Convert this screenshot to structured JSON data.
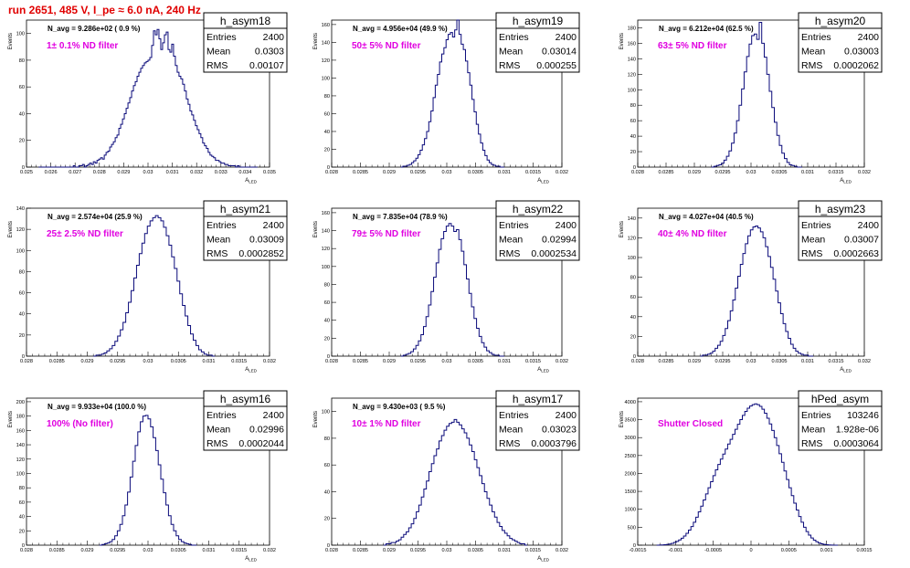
{
  "header": {
    "title": "run 2651,   485 V, I_pe ≈ 6.0 nA, 240 Hz"
  },
  "colors": {
    "histogram": "#0a0a7a",
    "annotation": "#e000e0",
    "title": "#e00000"
  },
  "chart_data": [
    {
      "type": "histogram",
      "name": "h_asym18",
      "n_avg": "N_avg = 9.286e+02 ( 0.9 %)",
      "annotation": "1± 0.1% ND filter",
      "xlabel": "A_LED",
      "ylabel": "Events",
      "xlim": [
        0.025,
        0.035
      ],
      "ylim": [
        0,
        110
      ],
      "xticks": [
        0.025,
        0.026,
        0.027,
        0.028,
        0.029,
        0.03,
        0.031,
        0.032,
        0.033,
        0.034,
        0.035
      ],
      "xtick_labels": [
        "0.025",
        "0.026",
        "0.027",
        "0.028",
        "0.029",
        "0.03",
        "0.031",
        "0.032",
        "0.033",
        "0.034",
        "0.035"
      ],
      "yticks": [
        0,
        20,
        40,
        60,
        80,
        100
      ],
      "ytick_labels": [
        "0",
        "20",
        "40",
        "60",
        "80",
        "100"
      ],
      "bins": {
        "lo": 0.0255,
        "hi": 0.0345,
        "values": [
          0,
          0,
          0,
          0,
          0,
          0,
          0,
          0,
          0,
          0,
          0,
          0,
          0,
          0,
          0,
          0,
          0,
          0,
          0,
          1,
          0,
          0,
          1,
          1,
          2,
          0,
          1,
          2,
          3,
          2,
          4,
          3,
          5,
          6,
          7,
          6,
          9,
          11,
          12,
          15,
          17,
          19,
          22,
          24,
          29,
          32,
          36,
          40,
          44,
          48,
          52,
          57,
          61,
          64,
          68,
          71,
          74,
          76,
          78,
          79,
          80,
          82,
          91,
          102,
          99,
          103,
          96,
          88,
          93,
          99,
          101,
          88,
          86,
          92,
          83,
          76,
          71,
          68,
          66,
          62,
          57,
          51,
          47,
          42,
          39,
          35,
          31,
          28,
          25,
          22,
          18,
          16,
          14,
          11,
          9,
          8,
          7,
          5,
          5,
          4,
          3,
          3,
          2,
          2,
          1,
          1,
          1,
          1,
          0,
          1,
          0,
          0,
          0,
          0,
          0,
          0,
          0,
          0,
          0,
          0
        ]
      },
      "stats": {
        "entries": "2400",
        "mean": "0.0303",
        "rms": "0.00107"
      }
    },
    {
      "type": "histogram",
      "name": "h_asym19",
      "n_avg": "N_avg = 4.956e+04 (49.9 %)",
      "annotation": "50± 5% ND filter",
      "xlabel": "A_LED",
      "ylabel": "Events",
      "xlim": [
        0.028,
        0.032
      ],
      "ylim": [
        0,
        165
      ],
      "xticks": [
        0.028,
        0.0285,
        0.029,
        0.0295,
        0.03,
        0.0305,
        0.031,
        0.0315,
        0.032
      ],
      "xtick_labels": [
        "0.028",
        "0.0285",
        "0.029",
        "0.0295",
        "0.03",
        "0.0305",
        "0.031",
        "0.0315",
        "0.032"
      ],
      "yticks": [
        0,
        20,
        40,
        60,
        80,
        100,
        120,
        140,
        160
      ],
      "ytick_labels": [
        "0",
        "20",
        "40",
        "60",
        "80",
        "100",
        "120",
        "140",
        "160"
      ],
      "bins": {
        "lo": 0.0292,
        "hi": 0.031,
        "values": [
          0,
          1,
          1,
          2,
          3,
          5,
          7,
          10,
          14,
          19,
          25,
          32,
          40,
          51,
          63,
          78,
          92,
          104,
          118,
          127,
          134,
          143,
          149,
          151,
          146,
          154,
          165,
          149,
          138,
          132,
          119,
          106,
          92,
          76,
          62,
          48,
          37,
          27,
          19,
          13,
          8,
          5,
          3,
          2,
          1,
          1,
          0,
          0
        ]
      },
      "stats": {
        "entries": "2400",
        "mean": "0.03014",
        "rms": "0.000255"
      }
    },
    {
      "type": "histogram",
      "name": "h_asym20",
      "n_avg": "N_avg = 6.212e+04 (62.5 %)",
      "annotation": "63± 5% ND filter",
      "xlabel": "A_LED",
      "ylabel": "Events",
      "xlim": [
        0.028,
        0.032
      ],
      "ylim": [
        0,
        190
      ],
      "xticks": [
        0.028,
        0.0285,
        0.029,
        0.0295,
        0.03,
        0.0305,
        0.031,
        0.0315,
        0.032
      ],
      "xtick_labels": [
        "0.028",
        "0.0285",
        "0.029",
        "0.0295",
        "0.03",
        "0.0305",
        "0.031",
        "0.0315",
        "0.032"
      ],
      "yticks": [
        0,
        20,
        40,
        60,
        80,
        100,
        120,
        140,
        160,
        180
      ],
      "ytick_labels": [
        "0",
        "20",
        "40",
        "60",
        "80",
        "100",
        "120",
        "140",
        "160",
        "180"
      ],
      "bins": {
        "lo": 0.0293,
        "hi": 0.0309,
        "values": [
          0,
          1,
          2,
          3,
          5,
          9,
          14,
          21,
          31,
          44,
          60,
          80,
          101,
          123,
          143,
          159,
          170,
          172,
          165,
          187,
          160,
          142,
          120,
          98,
          77,
          58,
          41,
          28,
          18,
          11,
          6,
          3,
          2,
          1,
          0,
          0
        ]
      },
      "stats": {
        "entries": "2400",
        "mean": "0.03003",
        "rms": "0.0002062"
      }
    },
    {
      "type": "histogram",
      "name": "h_asym21",
      "n_avg": "N_avg = 2.574e+04 (25.9 %)",
      "annotation": "25± 2.5% ND filter",
      "xlabel": "A_LED",
      "ylabel": "Events",
      "xlim": [
        0.028,
        0.032
      ],
      "ylim": [
        0,
        140
      ],
      "xticks": [
        0.028,
        0.0285,
        0.029,
        0.0295,
        0.03,
        0.0305,
        0.031,
        0.0315,
        0.032
      ],
      "xtick_labels": [
        "0.028",
        "0.0285",
        "0.029",
        "0.0295",
        "0.03",
        "0.0305",
        "0.031",
        "0.0315",
        "0.032"
      ],
      "yticks": [
        0,
        20,
        40,
        60,
        80,
        100,
        120,
        140
      ],
      "ytick_labels": [
        "0",
        "20",
        "40",
        "60",
        "80",
        "100",
        "120",
        "140"
      ],
      "bins": {
        "lo": 0.0291,
        "hi": 0.0311,
        "values": [
          0,
          1,
          1,
          2,
          3,
          5,
          7,
          10,
          14,
          19,
          25,
          32,
          41,
          51,
          62,
          74,
          86,
          97,
          107,
          116,
          123,
          128,
          131,
          133,
          131,
          128,
          122,
          114,
          105,
          94,
          83,
          71,
          59,
          48,
          38,
          29,
          21,
          15,
          10,
          6,
          4,
          2,
          1,
          1,
          0
        ]
      },
      "stats": {
        "entries": "2400",
        "mean": "0.03009",
        "rms": "0.0002852"
      }
    },
    {
      "type": "histogram",
      "name": "h_asym22",
      "n_avg": "N_avg = 7.835e+04 (78.9 %)",
      "annotation": "79± 5% ND filter",
      "xlabel": "A_LED",
      "ylabel": "Events",
      "xlim": [
        0.028,
        0.032
      ],
      "ylim": [
        0,
        165
      ],
      "xticks": [
        0.028,
        0.0285,
        0.029,
        0.0295,
        0.03,
        0.0305,
        0.031,
        0.0315,
        0.032
      ],
      "xtick_labels": [
        "0.028",
        "0.0285",
        "0.029",
        "0.0295",
        "0.03",
        "0.0305",
        "0.031",
        "0.0315",
        "0.032"
      ],
      "yticks": [
        0,
        20,
        40,
        60,
        80,
        100,
        120,
        140,
        160
      ],
      "ytick_labels": [
        "0",
        "20",
        "40",
        "60",
        "80",
        "100",
        "120",
        "140",
        "160"
      ],
      "bins": {
        "lo": 0.0292,
        "hi": 0.031,
        "values": [
          0,
          1,
          2,
          3,
          5,
          8,
          12,
          17,
          24,
          33,
          44,
          57,
          72,
          88,
          104,
          119,
          131,
          139,
          145,
          148,
          145,
          139,
          141,
          130,
          117,
          102,
          86,
          70,
          55,
          42,
          31,
          22,
          15,
          10,
          6,
          4,
          2,
          1,
          1,
          0,
          0
        ]
      },
      "stats": {
        "entries": "2400",
        "mean": "0.02994",
        "rms": "0.0002534"
      }
    },
    {
      "type": "histogram",
      "name": "h_asym23",
      "n_avg": "N_avg = 4.027e+04 (40.5 %)",
      "annotation": "40± 4% ND filter",
      "xlabel": "A_LED",
      "ylabel": "Events",
      "xlim": [
        0.028,
        0.032
      ],
      "ylim": [
        0,
        150
      ],
      "xticks": [
        0.028,
        0.0285,
        0.029,
        0.0295,
        0.03,
        0.0305,
        0.031,
        0.0315,
        0.032
      ],
      "xtick_labels": [
        "0.028",
        "0.0285",
        "0.029",
        "0.0295",
        "0.03",
        "0.0305",
        "0.031",
        "0.0315",
        "0.032"
      ],
      "yticks": [
        0,
        20,
        40,
        60,
        80,
        100,
        120,
        140
      ],
      "ytick_labels": [
        "0",
        "20",
        "40",
        "60",
        "80",
        "100",
        "120",
        "140"
      ],
      "bins": {
        "lo": 0.0291,
        "hi": 0.0311,
        "values": [
          0,
          1,
          1,
          2,
          3,
          5,
          8,
          11,
          15,
          21,
          28,
          36,
          46,
          57,
          69,
          81,
          93,
          104,
          114,
          122,
          128,
          131,
          132,
          130,
          126,
          120,
          111,
          101,
          90,
          78,
          66,
          54,
          43,
          33,
          25,
          18,
          12,
          8,
          5,
          3,
          2,
          1,
          1,
          0,
          0
        ]
      },
      "stats": {
        "entries": "2400",
        "mean": "0.03007",
        "rms": "0.0002663"
      }
    },
    {
      "type": "histogram",
      "name": "h_asym16",
      "n_avg": "N_avg = 9.933e+04 (100.0 %)",
      "annotation": "100% (No filter)",
      "xlabel": "A_LED",
      "ylabel": "Events",
      "xlim": [
        0.028,
        0.032
      ],
      "ylim": [
        0,
        205
      ],
      "xticks": [
        0.028,
        0.0285,
        0.029,
        0.0295,
        0.03,
        0.0305,
        0.031,
        0.0315,
        0.032
      ],
      "xtick_labels": [
        "0.028",
        "0.0285",
        "0.029",
        "0.0295",
        "0.03",
        "0.0305",
        "0.031",
        "0.0315",
        "0.032"
      ],
      "yticks": [
        0,
        20,
        40,
        60,
        80,
        100,
        120,
        140,
        160,
        180,
        200
      ],
      "ytick_labels": [
        "0",
        "20",
        "40",
        "60",
        "80",
        "100",
        "120",
        "140",
        "160",
        "180",
        "200"
      ],
      "bins": {
        "lo": 0.0292,
        "hi": 0.0308,
        "values": [
          0,
          1,
          2,
          3,
          5,
          8,
          13,
          20,
          29,
          41,
          56,
          74,
          95,
          117,
          139,
          158,
          172,
          180,
          181,
          176,
          165,
          150,
          132,
          112,
          92,
          73,
          56,
          41,
          29,
          20,
          13,
          8,
          5,
          3,
          2,
          1,
          0,
          0
        ]
      },
      "stats": {
        "entries": "2400",
        "mean": "0.02996",
        "rms": "0.0002044"
      }
    },
    {
      "type": "histogram",
      "name": "h_asym17",
      "n_avg": "N_avg = 9.430e+03 ( 9.5 %)",
      "annotation": "10± 1% ND filter",
      "xlabel": "A_LED",
      "ylabel": "Events",
      "xlim": [
        0.028,
        0.032
      ],
      "ylim": [
        0,
        110
      ],
      "xticks": [
        0.028,
        0.0285,
        0.029,
        0.0295,
        0.03,
        0.0305,
        0.031,
        0.0315,
        0.032
      ],
      "xtick_labels": [
        "0.028",
        "0.0285",
        "0.029",
        "0.0295",
        "0.03",
        "0.0305",
        "0.031",
        "0.0315",
        "0.032"
      ],
      "yticks": [
        0,
        20,
        40,
        60,
        80,
        100
      ],
      "ytick_labels": [
        "0",
        "20",
        "40",
        "60",
        "80",
        "100"
      ],
      "bins": {
        "lo": 0.0289,
        "hi": 0.0314,
        "values": [
          0,
          1,
          1,
          2,
          2,
          3,
          4,
          6,
          8,
          10,
          13,
          16,
          20,
          25,
          30,
          36,
          42,
          48,
          55,
          61,
          67,
          72,
          78,
          82,
          86,
          89,
          91,
          92,
          94,
          92,
          90,
          87,
          84,
          80,
          75,
          70,
          64,
          58,
          52,
          46,
          40,
          35,
          30,
          25,
          21,
          17,
          14,
          11,
          9,
          7,
          5,
          4,
          3,
          2,
          1,
          1,
          0
        ]
      },
      "stats": {
        "entries": "2400",
        "mean": "0.03023",
        "rms": "0.0003796"
      }
    },
    {
      "type": "histogram",
      "name": "hPed_asym",
      "n_avg": "",
      "annotation": "Shutter Closed",
      "xlabel": "",
      "ylabel": "Events",
      "xlim": [
        -0.0015,
        0.0015
      ],
      "ylim": [
        0,
        4100
      ],
      "xticks": [
        -0.0015,
        -0.001,
        -0.0005,
        0,
        0.0005,
        0.001,
        0.0015
      ],
      "xtick_labels": [
        "-0.0015",
        "-0.001",
        "-0.0005",
        "0",
        "0.0005",
        "0.001",
        "0.0015"
      ],
      "yticks": [
        0,
        500,
        1000,
        1500,
        2000,
        2500,
        3000,
        3500,
        4000
      ],
      "ytick_labels": [
        "0",
        "500",
        "1000",
        "1500",
        "2000",
        "2500",
        "3000",
        "3500",
        "4000"
      ],
      "bins": {
        "lo": -0.00125,
        "hi": 0.00115,
        "values": [
          0,
          3,
          6,
          12,
          20,
          32,
          50,
          75,
          105,
          145,
          195,
          255,
          330,
          420,
          520,
          640,
          780,
          930,
          1090,
          1260,
          1430,
          1600,
          1770,
          1940,
          2100,
          2250,
          2400,
          2540,
          2680,
          2820,
          2950,
          3090,
          3230,
          3370,
          3500,
          3620,
          3730,
          3820,
          3880,
          3920,
          3940,
          3920,
          3870,
          3790,
          3680,
          3540,
          3380,
          3200,
          3000,
          2780,
          2550,
          2310,
          2070,
          1830,
          1600,
          1380,
          1170,
          980,
          800,
          640,
          500,
          380,
          280,
          200,
          140,
          95,
          60,
          38,
          22,
          12,
          6,
          3,
          1,
          0
        ]
      },
      "stats": {
        "entries": "103246",
        "mean": "1.928e-06",
        "rms": "0.0003064"
      }
    }
  ],
  "stat_labels": {
    "entries": "Entries",
    "mean": "Mean",
    "rms": "RMS"
  }
}
